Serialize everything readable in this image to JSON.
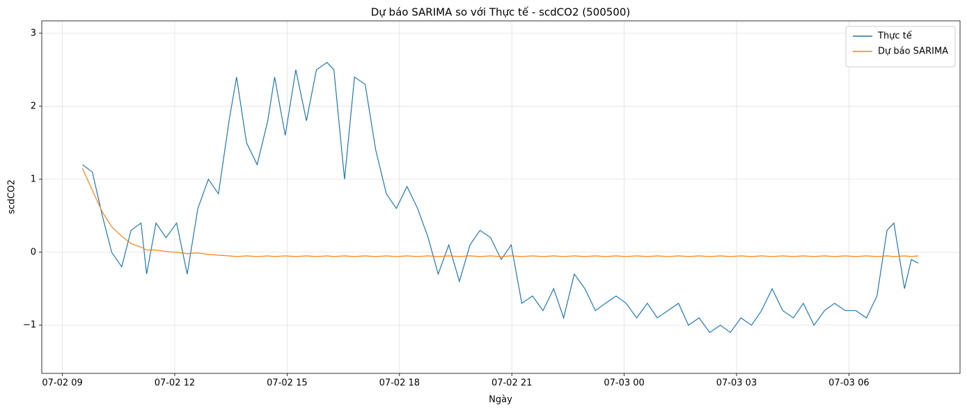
{
  "chart_data": {
    "type": "line",
    "title": "Dự báo SARIMA so với Thực tế - scdCO2 (500500)",
    "x_label": "Ngày",
    "y_label": "scdCO2",
    "x": [
      "07-02 09:32",
      "07-02 09:48",
      "07-02 10:04",
      "07-02 10:19",
      "07-02 10:35",
      "07-02 10:50",
      "07-02 11:06",
      "07-02 11:15",
      "07-02 11:30",
      "07-02 11:46",
      "07-02 12:03",
      "07-02 12:20",
      "07-02 12:37",
      "07-02 12:54",
      "07-02 13:10",
      "07-02 13:27",
      "07-02 13:39",
      "07-02 13:55",
      "07-02 14:12",
      "07-02 14:29",
      "07-02 14:40",
      "07-02 14:57",
      "07-02 15:14",
      "07-02 15:31",
      "07-02 15:47",
      "07-02 16:04",
      "07-02 16:15",
      "07-02 16:32",
      "07-02 16:48",
      "07-02 17:05",
      "07-02 17:22",
      "07-02 17:39",
      "07-02 17:55",
      "07-02 18:12",
      "07-02 18:29",
      "07-02 18:46",
      "07-02 19:02",
      "07-02 19:19",
      "07-02 19:36",
      "07-02 19:53",
      "07-02 20:09",
      "07-02 20:26",
      "07-02 20:43",
      "07-02 20:59",
      "07-02 21:16",
      "07-02 21:33",
      "07-02 21:50",
      "07-02 22:07",
      "07-02 22:23",
      "07-02 22:40",
      "07-02 22:57",
      "07-02 23:14",
      "07-02 23:30",
      "07-02 23:47",
      "07-03 00:03",
      "07-03 00:20",
      "07-03 00:37",
      "07-03 00:53",
      "07-03 01:10",
      "07-03 01:27",
      "07-03 01:43",
      "07-03 02:00",
      "07-03 02:17",
      "07-03 02:34",
      "07-03 02:50",
      "07-03 03:07",
      "07-03 03:24",
      "07-03 03:40",
      "07-03 03:57",
      "07-03 04:14",
      "07-03 04:31",
      "07-03 04:47",
      "07-03 05:04",
      "07-03 05:21",
      "07-03 05:37",
      "07-03 05:54",
      "07-03 06:11",
      "07-03 06:28",
      "07-03 06:45",
      "07-03 07:01",
      "07-03 07:12",
      "07-03 07:29",
      "07-03 07:40",
      "07-03 07:51"
    ],
    "series": [
      {
        "name": "Thực tế",
        "color": "#1f77b4",
        "values": [
          1.2,
          1.1,
          0.5,
          0.0,
          -0.2,
          0.3,
          0.4,
          -0.3,
          0.4,
          0.2,
          0.4,
          -0.3,
          0.6,
          1.0,
          0.8,
          1.8,
          2.4,
          1.5,
          1.2,
          1.8,
          2.4,
          1.6,
          2.5,
          1.8,
          2.5,
          2.6,
          2.5,
          1.0,
          2.4,
          2.3,
          1.4,
          0.8,
          0.6,
          0.9,
          0.6,
          0.2,
          -0.3,
          0.1,
          -0.4,
          0.1,
          0.3,
          0.2,
          -0.1,
          0.1,
          -0.7,
          -0.6,
          -0.8,
          -0.5,
          -0.9,
          -0.3,
          -0.5,
          -0.8,
          -0.7,
          -0.6,
          -0.7,
          -0.9,
          -0.7,
          -0.9,
          -0.8,
          -0.7,
          -1.0,
          -0.9,
          -1.1,
          -1.0,
          -1.1,
          -0.9,
          -1.0,
          -0.8,
          -0.5,
          -0.8,
          -0.9,
          -0.7,
          -1.0,
          -0.8,
          -0.7,
          -0.8,
          -0.8,
          -0.9,
          -0.6,
          0.3,
          0.4,
          -0.5,
          -0.1,
          -0.15
        ]
      },
      {
        "name": "Dự báo SARIMA",
        "color": "#ff7f0e",
        "values": [
          1.15,
          0.85,
          0.55,
          0.35,
          0.22,
          0.12,
          0.07,
          0.03,
          0.03,
          0.01,
          0.0,
          -0.02,
          -0.01,
          -0.03,
          -0.04,
          -0.05,
          -0.06,
          -0.05,
          -0.06,
          -0.05,
          -0.06,
          -0.05,
          -0.06,
          -0.05,
          -0.06,
          -0.05,
          -0.06,
          -0.05,
          -0.06,
          -0.05,
          -0.06,
          -0.05,
          -0.06,
          -0.05,
          -0.06,
          -0.05,
          -0.06,
          -0.05,
          -0.06,
          -0.05,
          -0.06,
          -0.05,
          -0.06,
          -0.05,
          -0.06,
          -0.05,
          -0.06,
          -0.05,
          -0.06,
          -0.05,
          -0.06,
          -0.05,
          -0.06,
          -0.05,
          -0.06,
          -0.05,
          -0.06,
          -0.05,
          -0.06,
          -0.05,
          -0.06,
          -0.05,
          -0.06,
          -0.05,
          -0.06,
          -0.05,
          -0.06,
          -0.05,
          -0.06,
          -0.05,
          -0.06,
          -0.05,
          -0.06,
          -0.05,
          -0.06,
          -0.05,
          -0.06,
          -0.05,
          -0.06,
          -0.05,
          -0.06,
          -0.05,
          -0.06,
          -0.05
        ]
      }
    ],
    "xlim": [
      "07-02 08:27",
      "07-03 08:58"
    ],
    "xticks": [
      "07-02 09",
      "07-02 12",
      "07-02 15",
      "07-02 18",
      "07-02 21",
      "07-03 00",
      "07-03 03",
      "07-03 06"
    ],
    "ylim": [
      -1.66,
      3.17
    ],
    "yticks": [
      {
        "value": -1,
        "label": "−1"
      },
      0,
      1,
      2,
      3
    ],
    "grid": true,
    "legend": "upper right"
  }
}
